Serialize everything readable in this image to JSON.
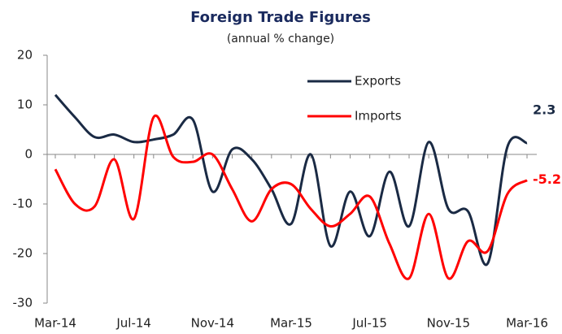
{
  "chart_data": {
    "type": "line",
    "title": "Foreign Trade Figures",
    "subtitle": "(annual % change)",
    "categories": [
      "Mar-14",
      null,
      null,
      null,
      "Jul-14",
      null,
      null,
      null,
      "Nov-14",
      null,
      null,
      null,
      "Mar-15",
      null,
      null,
      null,
      "Jul-15",
      null,
      null,
      null,
      "Nov-15",
      null,
      null,
      null,
      "Mar-16"
    ],
    "series": [
      {
        "name": "Exports",
        "color": "#1a2a44",
        "values": [
          12,
          7.5,
          3.5,
          4,
          2.5,
          3,
          4,
          7,
          -7.5,
          1,
          -1,
          -7,
          -14,
          0,
          -18.5,
          -7.5,
          -16.5,
          -3.5,
          -14.5,
          2.5,
          -11,
          -11.5,
          -22,
          1.5,
          2.3
        ]
      },
      {
        "name": "Imports",
        "color": "#ff0000",
        "values": [
          -3,
          -10,
          -10.5,
          -1,
          -13,
          7.5,
          -0.5,
          -1.5,
          0,
          -7,
          -13.5,
          -7,
          -6,
          -11,
          -14.5,
          -12,
          -8.5,
          -18,
          -25,
          -12,
          -25,
          -17.5,
          -19.5,
          -8,
          -5.2
        ]
      }
    ],
    "ylim": [
      -30,
      20
    ],
    "yticks": [
      -30,
      -20,
      -10,
      0,
      10,
      20
    ],
    "grid": false,
    "legend": "top-right"
  }
}
